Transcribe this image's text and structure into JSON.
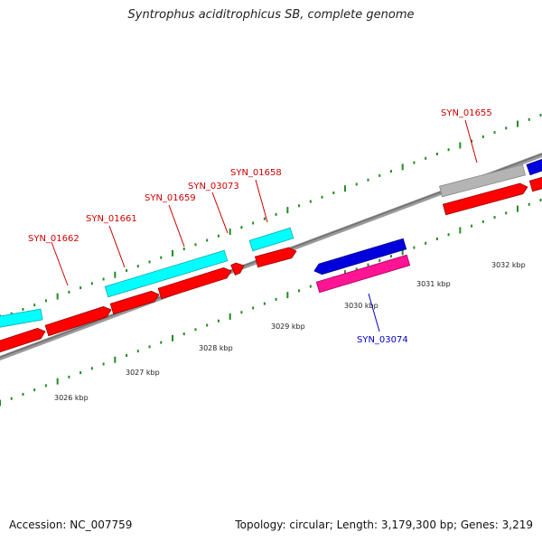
{
  "title": "Syntrophus aciditrophicus SB, complete genome",
  "footer": {
    "accession": "Accession: NC_007759",
    "summary": "Topology: circular; Length: 3,179,300 bp; Genes: 3,219"
  },
  "colors": {
    "forward_cds": "#ff0000",
    "forward_gene": "#00ffff",
    "reverse_gene": "#0000dd",
    "reverse_cds": "#ff1493",
    "gray_gene": "#b4b4b4",
    "tick": "#228b22",
    "backbone": "#808080",
    "forward_label": "#cc0000",
    "reverse_label": "#0000cc"
  },
  "scale_labels": [
    "3026 kbp",
    "3027 kbp",
    "3028 kbp",
    "3029 kbp",
    "3030 kbp",
    "3031 kbp",
    "3032 kbp"
  ],
  "gene_labels": {
    "forward": [
      "SYN_01662",
      "SYN_01661",
      "SYN_01659",
      "SYN_03073",
      "SYN_01658",
      "SYN_01655"
    ],
    "reverse": [
      "SYN_03074"
    ]
  }
}
